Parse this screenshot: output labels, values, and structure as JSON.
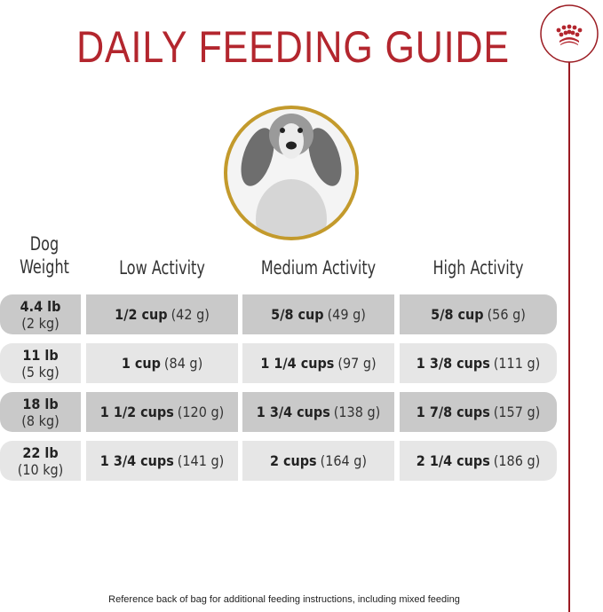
{
  "title": "DAILY FEEDING GUIDE",
  "colors": {
    "brand_red": "#b3262e",
    "gold_ring": "#c39a2c",
    "row_dark": "#c9c9c9",
    "row_light": "#e6e6e6"
  },
  "logo": {
    "icon": "crown-icon"
  },
  "table": {
    "headers": {
      "weight_line1": "Dog",
      "weight_line2": "Weight",
      "low": "Low Activity",
      "medium": "Medium Activity",
      "high": "High Activity"
    },
    "rows": [
      {
        "lb": "4.4 lb",
        "kg": "(2 kg)",
        "low": {
          "cups": "1/2 cup",
          "g": "(42 g)"
        },
        "medium": {
          "cups": "5/8 cup",
          "g": "(49 g)"
        },
        "high": {
          "cups": "5/8 cup",
          "g": "(56 g)"
        }
      },
      {
        "lb": "11 lb",
        "kg": "(5 kg)",
        "low": {
          "cups": "1 cup",
          "g": "(84 g)"
        },
        "medium": {
          "cups": "1 1/4 cups",
          "g": "(97 g)"
        },
        "high": {
          "cups": "1 3/8 cups",
          "g": "(111 g)"
        }
      },
      {
        "lb": "18 lb",
        "kg": "(8 kg)",
        "low": {
          "cups": "1 1/2 cups",
          "g": "(120 g)"
        },
        "medium": {
          "cups": "1 3/4 cups",
          "g": "(138 g)"
        },
        "high": {
          "cups": "1 7/8 cups",
          "g": "(157 g)"
        }
      },
      {
        "lb": "22 lb",
        "kg": "(10 kg)",
        "low": {
          "cups": "1 3/4 cups",
          "g": "(141 g)"
        },
        "medium": {
          "cups": "2 cups",
          "g": "(164 g)"
        },
        "high": {
          "cups": "2 1/4 cups",
          "g": "(186 g)"
        }
      }
    ]
  },
  "footnote": "Reference back of bag for additional feeding instructions, including mixed feeding"
}
